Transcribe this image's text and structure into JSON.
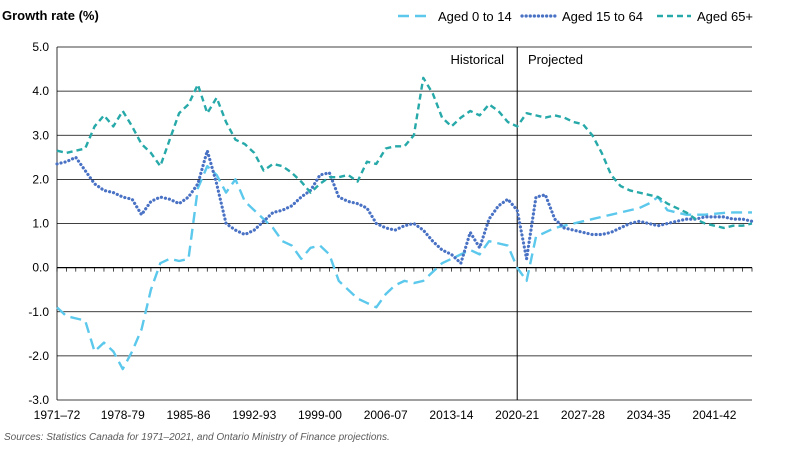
{
  "chart_data": {
    "type": "line",
    "ylabel": "Growth rate (%)",
    "ylim": [
      -3.0,
      5.0
    ],
    "y_ticks": [
      "-3.0",
      "-2.0",
      "-1.0",
      "0.0",
      "1.0",
      "2.0",
      "3.0",
      "4.0",
      "5.0"
    ],
    "x_tick_labels": [
      "1971–72",
      "1978-79",
      "1985-86",
      "1992-93",
      "1999-00",
      "2006-07",
      "2013-14",
      "2020-21",
      "2027-28",
      "2034-35",
      "2041-42"
    ],
    "x_tick_years": [
      1971,
      1978,
      1985,
      1992,
      1999,
      2006,
      2013,
      2020,
      2027,
      2034,
      2041
    ],
    "x_range_years": [
      1971,
      2045
    ],
    "divider_year": 2020,
    "region_labels": {
      "historical": "Historical",
      "projected": "Projected"
    },
    "grid": "horizontal",
    "legend_position": "top-right",
    "series": [
      {
        "name": "Aged 0 to 14",
        "color": "#5bc8ec",
        "style": "long-dash",
        "x": [
          1971,
          1972,
          1973,
          1974,
          1975,
          1976,
          1977,
          1978,
          1979,
          1980,
          1981,
          1982,
          1983,
          1984,
          1985,
          1986,
          1987,
          1988,
          1989,
          1990,
          1991,
          1992,
          1993,
          1994,
          1995,
          1996,
          1997,
          1998,
          1999,
          2000,
          2001,
          2002,
          2003,
          2004,
          2005,
          2006,
          2007,
          2008,
          2009,
          2010,
          2011,
          2012,
          2013,
          2014,
          2015,
          2016,
          2017,
          2018,
          2019,
          2020,
          2021,
          2022,
          2023,
          2024,
          2025,
          2026,
          2027,
          2028,
          2029,
          2030,
          2031,
          2032,
          2033,
          2034,
          2035,
          2036,
          2037,
          2038,
          2039,
          2040,
          2041,
          2042,
          2043,
          2044,
          2045
        ],
        "values": [
          -0.9,
          -1.1,
          -1.15,
          -1.2,
          -1.9,
          -1.7,
          -1.9,
          -2.3,
          -1.9,
          -1.4,
          -0.5,
          0.1,
          0.2,
          0.15,
          0.2,
          1.8,
          2.3,
          2.1,
          1.7,
          2.0,
          1.5,
          1.3,
          1.1,
          0.9,
          0.6,
          0.5,
          0.2,
          0.45,
          0.5,
          0.3,
          -0.3,
          -0.5,
          -0.7,
          -0.8,
          -0.9,
          -0.6,
          -0.4,
          -0.3,
          -0.35,
          -0.3,
          -0.1,
          0.1,
          0.2,
          0.3,
          0.4,
          0.3,
          0.6,
          0.55,
          0.5,
          0.0,
          -0.3,
          0.7,
          0.8,
          0.9,
          0.95,
          1.0,
          1.05,
          1.1,
          1.15,
          1.2,
          1.25,
          1.3,
          1.35,
          1.45,
          1.6,
          1.3,
          1.25,
          1.2,
          1.2,
          1.2,
          1.22,
          1.24,
          1.25,
          1.25,
          1.25
        ]
      },
      {
        "name": "Aged 15 to 64",
        "color": "#4a72c4",
        "style": "dotted",
        "x": [
          1971,
          1972,
          1973,
          1974,
          1975,
          1976,
          1977,
          1978,
          1979,
          1980,
          1981,
          1982,
          1983,
          1984,
          1985,
          1986,
          1987,
          1988,
          1989,
          1990,
          1991,
          1992,
          1993,
          1994,
          1995,
          1996,
          1997,
          1998,
          1999,
          2000,
          2001,
          2002,
          2003,
          2004,
          2005,
          2006,
          2007,
          2008,
          2009,
          2010,
          2011,
          2012,
          2013,
          2014,
          2015,
          2016,
          2017,
          2018,
          2019,
          2020,
          2021,
          2022,
          2023,
          2024,
          2025,
          2026,
          2027,
          2028,
          2029,
          2030,
          2031,
          2032,
          2033,
          2034,
          2035,
          2036,
          2037,
          2038,
          2039,
          2040,
          2041,
          2042,
          2043,
          2044,
          2045
        ],
        "values": [
          2.35,
          2.4,
          2.5,
          2.2,
          1.9,
          1.75,
          1.7,
          1.6,
          1.55,
          1.2,
          1.5,
          1.6,
          1.55,
          1.45,
          1.6,
          1.9,
          2.65,
          1.9,
          1.0,
          0.85,
          0.75,
          0.85,
          1.05,
          1.25,
          1.3,
          1.4,
          1.6,
          1.75,
          2.1,
          2.15,
          1.6,
          1.5,
          1.45,
          1.35,
          1.0,
          0.9,
          0.85,
          0.95,
          1.0,
          0.85,
          0.6,
          0.4,
          0.3,
          0.1,
          0.8,
          0.45,
          1.1,
          1.4,
          1.55,
          1.3,
          0.2,
          1.6,
          1.65,
          1.1,
          0.9,
          0.85,
          0.8,
          0.75,
          0.75,
          0.8,
          0.9,
          1.0,
          1.05,
          1.0,
          0.95,
          1.0,
          1.05,
          1.1,
          1.1,
          1.15,
          1.15,
          1.15,
          1.1,
          1.1,
          1.05
        ]
      },
      {
        "name": "Aged 65+",
        "color": "#27a9a9",
        "style": "dashed",
        "x": [
          1971,
          1972,
          1973,
          1974,
          1975,
          1976,
          1977,
          1978,
          1979,
          1980,
          1981,
          1982,
          1983,
          1984,
          1985,
          1986,
          1987,
          1988,
          1989,
          1990,
          1991,
          1992,
          1993,
          1994,
          1995,
          1996,
          1997,
          1998,
          1999,
          2000,
          2001,
          2002,
          2003,
          2004,
          2005,
          2006,
          2007,
          2008,
          2009,
          2010,
          2011,
          2012,
          2013,
          2014,
          2015,
          2016,
          2017,
          2018,
          2019,
          2020,
          2021,
          2022,
          2023,
          2024,
          2025,
          2026,
          2027,
          2028,
          2029,
          2030,
          2031,
          2032,
          2033,
          2034,
          2035,
          2036,
          2037,
          2038,
          2039,
          2040,
          2041,
          2042,
          2043,
          2044,
          2045
        ],
        "values": [
          2.65,
          2.6,
          2.65,
          2.7,
          3.2,
          3.45,
          3.2,
          3.55,
          3.2,
          2.8,
          2.6,
          2.3,
          2.9,
          3.5,
          3.7,
          4.15,
          3.5,
          3.85,
          3.3,
          2.9,
          2.8,
          2.6,
          2.2,
          2.35,
          2.3,
          2.15,
          1.95,
          1.7,
          1.9,
          2.05,
          2.05,
          2.1,
          1.95,
          2.4,
          2.35,
          2.7,
          2.75,
          2.75,
          3.0,
          4.3,
          3.95,
          3.4,
          3.2,
          3.4,
          3.55,
          3.45,
          3.7,
          3.55,
          3.3,
          3.2,
          3.5,
          3.45,
          3.4,
          3.45,
          3.4,
          3.3,
          3.25,
          3.0,
          2.6,
          2.1,
          1.85,
          1.75,
          1.7,
          1.65,
          1.6,
          1.45,
          1.35,
          1.25,
          1.1,
          1.0,
          0.95,
          0.9,
          0.95,
          0.95,
          1.0
        ]
      }
    ],
    "source_note": "Sources: Statistics Canada for 1971–2021, and Ontario Ministry of Finance projections."
  }
}
